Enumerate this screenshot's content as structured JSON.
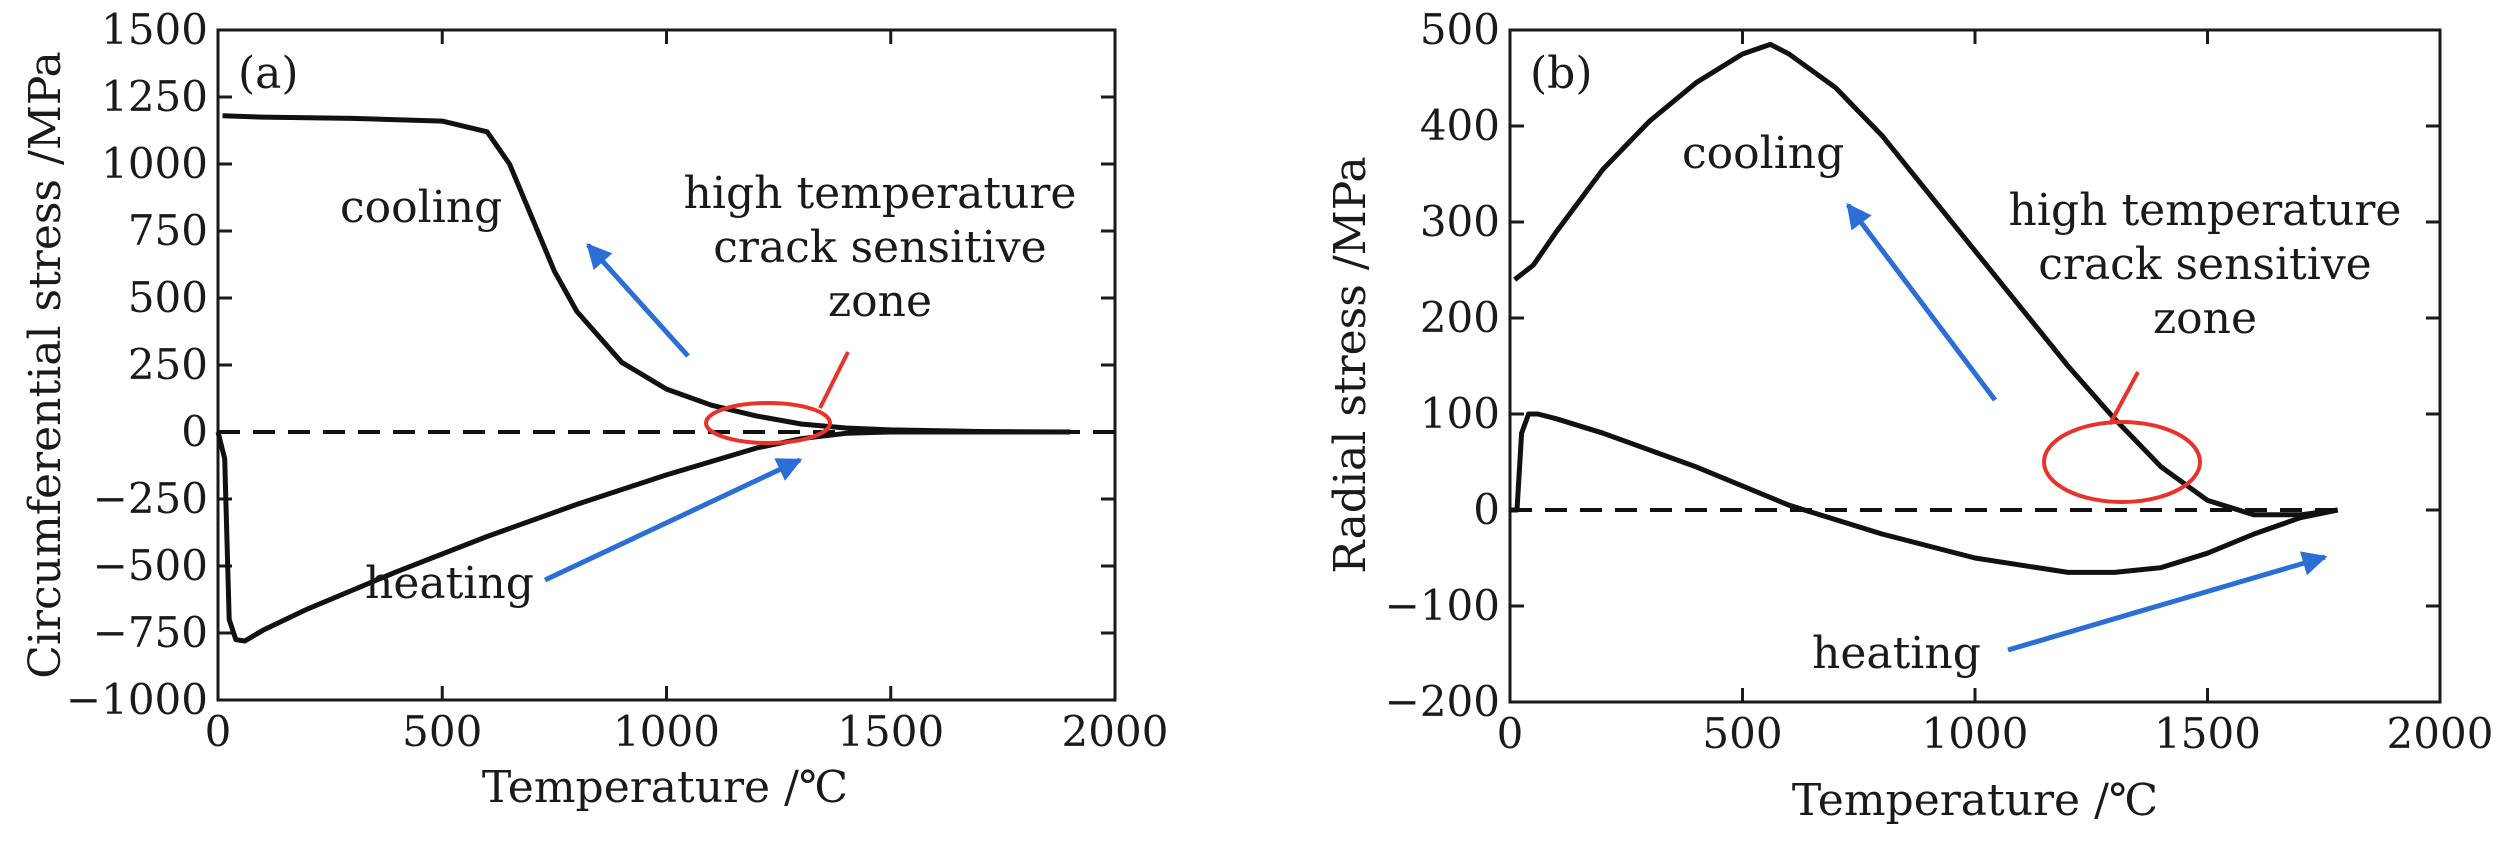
{
  "charts": [
    {
      "id": "a",
      "panel_label": "(a)",
      "xlabel": "Temperature /℃",
      "ylabel": "Circumferential stress /MPa",
      "xlim": [
        0,
        2000
      ],
      "ylim": [
        -1000,
        1500
      ],
      "xticks": [
        "0",
        "500",
        "1000",
        "1500",
        "2000"
      ],
      "yticks": [
        "1500",
        "1250",
        "1000",
        "750",
        "500",
        "250",
        "0",
        "−250",
        "−500",
        "−750",
        "−1000"
      ],
      "annotations": {
        "cooling": "cooling",
        "heating": "heating",
        "zone_line1": "high temperature",
        "zone_line2": "crack sensitive",
        "zone_line3": "zone"
      }
    },
    {
      "id": "b",
      "panel_label": "(b)",
      "xlabel": "Temperature /℃",
      "ylabel": "Radial stress /MPa",
      "xlim": [
        0,
        2000
      ],
      "ylim": [
        -200,
        500
      ],
      "xticks": [
        "0",
        "500",
        "1000",
        "1500",
        "2000"
      ],
      "yticks": [
        "500",
        "400",
        "300",
        "200",
        "100",
        "0",
        "−100",
        "−200"
      ],
      "annotations": {
        "cooling": "cooling",
        "heating": "heating",
        "zone_line1": "high temperature",
        "zone_line2": "crack sensitive",
        "zone_line3": "zone"
      }
    }
  ],
  "chart_data": [
    {
      "type": "line",
      "title": "(a)",
      "xlabel": "Temperature /℃",
      "ylabel": "Circumferential stress /MPa",
      "xlim": [
        0,
        2000
      ],
      "ylim": [
        -1000,
        1500
      ],
      "grid": false,
      "series": [
        {
          "name": "cooling",
          "x": [
            1900,
            1700,
            1500,
            1400,
            1300,
            1200,
            1100,
            1000,
            900,
            800,
            750,
            700,
            650,
            600,
            500,
            300,
            100,
            10
          ],
          "y": [
            0,
            2,
            8,
            15,
            30,
            60,
            100,
            160,
            260,
            450,
            600,
            800,
            1000,
            1120,
            1160,
            1170,
            1175,
            1180
          ]
        },
        {
          "name": "heating",
          "x": [
            0,
            15,
            25,
            40,
            60,
            100,
            200,
            400,
            600,
            800,
            1000,
            1200,
            1300,
            1400,
            1500,
            1700,
            1900
          ],
          "y": [
            0,
            -100,
            -700,
            -775,
            -780,
            -740,
            -660,
            -520,
            -390,
            -270,
            -160,
            -60,
            -25,
            -5,
            0,
            0,
            0
          ]
        },
        {
          "name": "zero reference",
          "x": [
            0,
            2000
          ],
          "y": [
            0,
            0
          ]
        }
      ],
      "annotations": [
        "cooling",
        "heating",
        "high temperature crack sensitive zone"
      ]
    },
    {
      "type": "line",
      "title": "(b)",
      "xlabel": "Temperature /℃",
      "ylabel": "Radial stress /MPa",
      "xlim": [
        0,
        2000
      ],
      "ylim": [
        -200,
        500
      ],
      "grid": false,
      "series": [
        {
          "name": "cooling",
          "x": [
            1780,
            1700,
            1600,
            1500,
            1400,
            1300,
            1200,
            1100,
            1000,
            900,
            800,
            700,
            600,
            560,
            500,
            400,
            300,
            200,
            100,
            50,
            10
          ],
          "y": [
            0,
            -5,
            -5,
            10,
            45,
            95,
            150,
            210,
            270,
            330,
            390,
            440,
            475,
            485,
            475,
            445,
            405,
            355,
            290,
            255,
            240
          ]
        },
        {
          "name": "heating",
          "x": [
            0,
            15,
            25,
            40,
            60,
            100,
            200,
            400,
            600,
            800,
            1000,
            1200,
            1300,
            1400,
            1500,
            1600,
            1700,
            1780
          ],
          "y": [
            0,
            0,
            80,
            100,
            100,
            95,
            80,
            45,
            5,
            -25,
            -50,
            -65,
            -65,
            -60,
            -45,
            -25,
            -8,
            0
          ]
        },
        {
          "name": "zero reference",
          "x": [
            0,
            1780
          ],
          "y": [
            0,
            0
          ]
        }
      ],
      "annotations": [
        "cooling",
        "heating",
        "high temperature crack sensitive zone"
      ]
    }
  ]
}
